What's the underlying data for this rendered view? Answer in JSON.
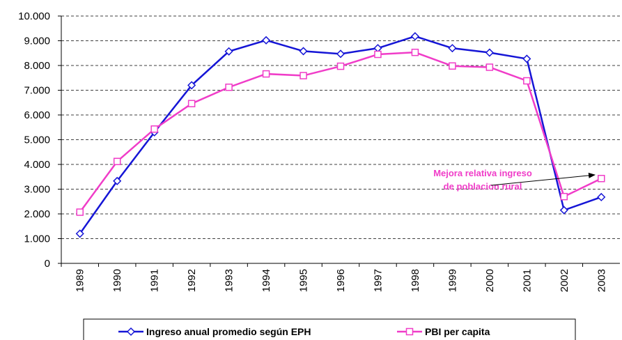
{
  "chart_data": {
    "type": "line",
    "categories": [
      "1989",
      "1990",
      "1991",
      "1992",
      "1993",
      "1994",
      "1995",
      "1996",
      "1997",
      "1998",
      "1999",
      "2000",
      "2001",
      "2002",
      "2003"
    ],
    "series": [
      {
        "name": "Ingreso anual promedio según EPH",
        "color": "#1515d6",
        "marker": "diamond",
        "values": [
          1200,
          3330,
          5300,
          7200,
          8570,
          9020,
          8580,
          8470,
          8700,
          9180,
          8700,
          8520,
          8270,
          2150,
          2680
        ]
      },
      {
        "name": "PBI per capita",
        "color": "#f03cc8",
        "marker": "square",
        "values": [
          2070,
          4120,
          5430,
          6460,
          7120,
          7660,
          7590,
          7970,
          8450,
          8530,
          7980,
          7930,
          7380,
          2700,
          3430
        ]
      }
    ],
    "ylim": [
      0,
      10000
    ],
    "yticks": [
      0,
      {
        "value": 1000,
        "label": "1.000"
      },
      {
        "value": 2000,
        "label": "2.000"
      },
      {
        "value": 3000,
        "label": "3.000"
      },
      {
        "value": 4000,
        "label": "4.000"
      },
      {
        "value": 5000,
        "label": "5.000"
      },
      {
        "value": 6000,
        "label": "6.000"
      },
      {
        "value": 7000,
        "label": "7.000"
      },
      {
        "value": 8000,
        "label": "8.000"
      },
      {
        "value": 9000,
        "label": "9.000"
      },
      {
        "value": 10000,
        "label": "10.000"
      }
    ],
    "grid": true,
    "annotation": [
      "Mejora relativa ingreso",
      "de poblacion rural"
    ],
    "annotation_color": "#f03cc8"
  }
}
